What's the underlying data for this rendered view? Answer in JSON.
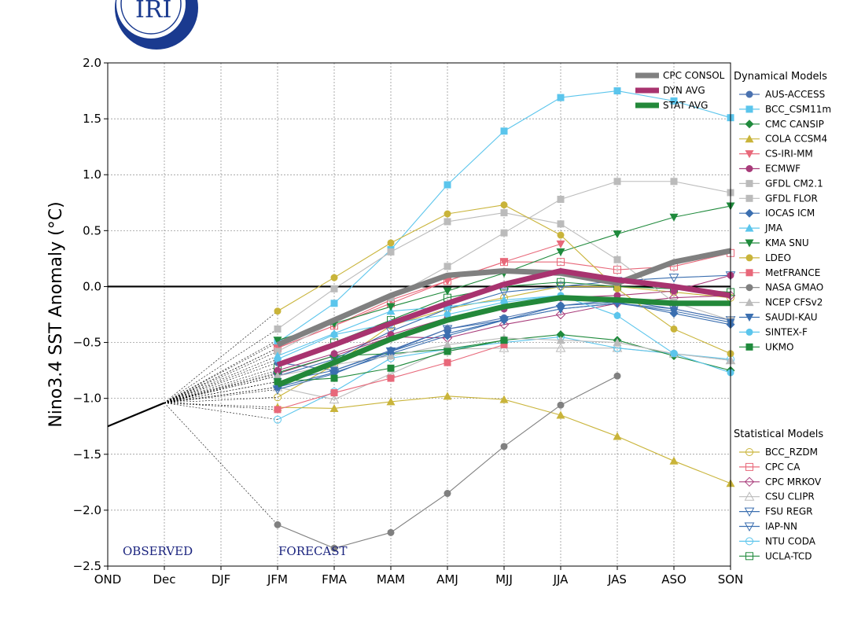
{
  "logo_text": "IRI",
  "chart_data": {
    "type": "line",
    "title": "",
    "xlabel": "",
    "ylabel": "Nino3.4 SST Anomaly (°C)",
    "ylim": [
      -2.5,
      2.0
    ],
    "y_ticks": [
      -2.5,
      -2.0,
      -1.5,
      -1.0,
      -0.5,
      0.0,
      0.5,
      1.0,
      1.5,
      2.0
    ],
    "y_tick_labels": [
      "−2.5",
      "−2.0",
      "−1.5",
      "−1.0",
      "−0.5",
      "0.0",
      "0.5",
      "1.0",
      "1.5",
      "2.0"
    ],
    "categories": [
      "OND",
      "Dec",
      "DJF",
      "JFM",
      "FMA",
      "MAM",
      "AMJ",
      "MJJ",
      "JJA",
      "JAS",
      "ASO",
      "SON"
    ],
    "grid": true,
    "zero_line": true,
    "annotations": {
      "observed": "OBSERVED",
      "forecast": "FORECAST"
    },
    "observed": {
      "x": [
        "OND",
        "Dec"
      ],
      "values": [
        -1.25,
        -1.04
      ]
    },
    "forecast_start": {
      "x": "Dec",
      "value": -1.04
    },
    "averages": [
      {
        "name": "CPC CONSOL",
        "color": "#808080",
        "values": [
          null,
          null,
          null,
          -0.52,
          -0.3,
          -0.08,
          0.1,
          0.14,
          0.12,
          0.03,
          0.22,
          0.32
        ]
      },
      {
        "name": "DYN AVG",
        "color": "#a8336f",
        "values": [
          null,
          null,
          null,
          -0.7,
          -0.52,
          -0.33,
          -0.15,
          0.02,
          0.14,
          0.06,
          0.0,
          -0.08
        ]
      },
      {
        "name": "STAT AVG",
        "color": "#23883a",
        "values": [
          null,
          null,
          null,
          -0.88,
          -0.68,
          -0.47,
          -0.3,
          -0.18,
          -0.1,
          -0.12,
          -0.15,
          -0.15
        ]
      }
    ],
    "dynamical_models_title": "Dynamical Models",
    "dynamical_models": [
      {
        "name": "AUS-ACCESS",
        "color": "#4a72b0",
        "marker": "circle",
        "values": [
          null,
          null,
          null,
          -0.68,
          -0.75,
          -0.57,
          -0.38,
          -0.28,
          -0.17,
          -0.12,
          -0.2,
          -0.3
        ]
      },
      {
        "name": "BCC_CSM11m",
        "color": "#5bc5ec",
        "marker": "square",
        "values": [
          null,
          null,
          null,
          -0.5,
          -0.15,
          0.33,
          0.91,
          1.39,
          1.69,
          1.75,
          1.66,
          1.51
        ]
      },
      {
        "name": "CMC CANSIP",
        "color": "#1f8a3c",
        "marker": "diamond",
        "values": [
          null,
          null,
          null,
          -0.77,
          -0.62,
          -0.6,
          -0.56,
          -0.48,
          -0.43,
          -0.48,
          -0.62,
          -0.75
        ]
      },
      {
        "name": "COLA CCSM4",
        "color": "#c9b43a",
        "marker": "triangle-up",
        "values": [
          null,
          null,
          null,
          -1.08,
          -1.09,
          -1.03,
          -0.98,
          -1.01,
          -1.15,
          -1.34,
          -1.56,
          -1.76
        ]
      },
      {
        "name": "CS-IRI-MM",
        "color": "#e8687a",
        "marker": "triangle-down",
        "values": [
          null,
          null,
          null,
          -0.55,
          -0.35,
          -0.12,
          0.05,
          0.22,
          0.38,
          null,
          null,
          null
        ]
      },
      {
        "name": "ECMWF",
        "color": "#a83b7a",
        "marker": "circle",
        "values": [
          null,
          null,
          null,
          -0.75,
          -0.6,
          -0.43,
          -0.28,
          -0.2,
          -0.1,
          -0.08,
          -0.04,
          0.1
        ]
      },
      {
        "name": "GFDL CM2.1",
        "color": "#bbbbbb",
        "marker": "square",
        "values": [
          null,
          null,
          null,
          -0.38,
          -0.02,
          0.31,
          0.58,
          0.66,
          0.56,
          0.24,
          -0.14,
          -0.3
        ]
      },
      {
        "name": "GFDL FLOR",
        "color": "#bbbbbb",
        "marker": "square",
        "values": [
          null,
          null,
          null,
          -0.58,
          -0.32,
          -0.1,
          0.18,
          0.48,
          0.78,
          0.94,
          0.94,
          0.84
        ]
      },
      {
        "name": "IOCAS ICM",
        "color": "#3b6fb0",
        "marker": "diamond",
        "values": [
          null,
          null,
          null,
          -0.9,
          -0.77,
          -0.6,
          -0.44,
          -0.3,
          -0.17,
          -0.14,
          -0.24,
          -0.34
        ]
      },
      {
        "name": "JMA",
        "color": "#5bc5ec",
        "marker": "triangle-up",
        "values": [
          null,
          null,
          null,
          -0.62,
          -0.42,
          -0.22,
          -0.18,
          -0.12,
          -0.08,
          null,
          null,
          null
        ]
      },
      {
        "name": "KMA SNU",
        "color": "#1f8a3c",
        "marker": "triangle-down",
        "values": [
          null,
          null,
          null,
          -0.48,
          -0.33,
          -0.18,
          -0.04,
          0.12,
          0.31,
          0.47,
          0.62,
          0.72
        ]
      },
      {
        "name": "LDEO",
        "color": "#c9b43a",
        "marker": "circle",
        "values": [
          null,
          null,
          null,
          -0.22,
          0.08,
          0.39,
          0.65,
          0.73,
          0.46,
          -0.02,
          -0.38,
          -0.6
        ]
      },
      {
        "name": "MetFRANCE",
        "color": "#e8687a",
        "marker": "square",
        "values": [
          null,
          null,
          null,
          -1.1,
          -0.95,
          -0.82,
          -0.68,
          -0.52,
          null,
          null,
          null,
          null
        ]
      },
      {
        "name": "NASA GMAO",
        "color": "#808080",
        "marker": "circle",
        "values": [
          null,
          null,
          null,
          -2.13,
          -2.34,
          -2.2,
          -1.85,
          -1.43,
          -1.06,
          -0.8,
          null,
          null
        ]
      },
      {
        "name": "NCEP CFSv2",
        "color": "#bbbbbb",
        "marker": "triangle-up",
        "values": [
          null,
          null,
          null,
          -0.8,
          -0.7,
          -0.62,
          -0.52,
          -0.46,
          -0.48,
          -0.5,
          -0.6,
          -0.66
        ]
      },
      {
        "name": "SAUDI-KAU",
        "color": "#3b6fb0",
        "marker": "triangle-down",
        "values": [
          null,
          null,
          null,
          -0.85,
          -0.75,
          -0.58,
          -0.42,
          -0.3,
          -0.2,
          -0.15,
          -0.22,
          -0.32
        ]
      },
      {
        "name": "SINTEX-F",
        "color": "#5bc5ec",
        "marker": "circle",
        "values": [
          null,
          null,
          null,
          -0.65,
          -0.43,
          -0.33,
          -0.25,
          -0.14,
          -0.08,
          -0.26,
          -0.6,
          -0.77
        ]
      },
      {
        "name": "UKMO",
        "color": "#1f8a3c",
        "marker": "square",
        "values": [
          null,
          null,
          null,
          -0.85,
          -0.82,
          -0.73,
          -0.58,
          -0.48,
          null,
          null,
          null,
          null
        ]
      }
    ],
    "statistical_models_title": "Statistical Models",
    "statistical_models": [
      {
        "name": "BCC_RZDM",
        "color": "#c9b43a",
        "marker": "circle-open",
        "values": [
          null,
          null,
          null,
          -0.99,
          -0.7,
          -0.35,
          -0.2,
          -0.1,
          0.0,
          0.0,
          -0.05,
          -0.1
        ]
      },
      {
        "name": "CPC CA",
        "color": "#e8687a",
        "marker": "square-open",
        "values": [
          null,
          null,
          null,
          -0.55,
          -0.35,
          -0.15,
          0.05,
          0.22,
          0.22,
          0.15,
          0.18,
          0.3
        ]
      },
      {
        "name": "CPC MRKOV",
        "color": "#a83b7a",
        "marker": "diamond-open",
        "values": [
          null,
          null,
          null,
          -0.78,
          -0.62,
          -0.45,
          -0.46,
          -0.34,
          -0.25,
          -0.15,
          -0.1,
          -0.08
        ]
      },
      {
        "name": "CSU CLIPR",
        "color": "#bbbbbb",
        "marker": "triangle-up-open",
        "values": [
          null,
          null,
          null,
          -0.9,
          -1.01,
          -0.78,
          -0.56,
          -0.55,
          -0.55,
          -0.55,
          -0.6,
          -0.66
        ]
      },
      {
        "name": "FSU REGR",
        "color": "#3b6fb0",
        "marker": "triangle-down-open",
        "values": [
          null,
          null,
          null,
          -0.8,
          -0.65,
          -0.4,
          -0.2,
          -0.05,
          0.0,
          0.05,
          0.08,
          0.1
        ]
      },
      {
        "name": "IAP-NN",
        "color": "#3b6fb0",
        "marker": "triangle-down-open",
        "values": [
          null,
          null,
          null,
          -0.92,
          -0.78,
          -0.58,
          -0.38,
          -0.3,
          -0.2,
          -0.15,
          -0.2,
          -0.3
        ]
      },
      {
        "name": "NTU CODA",
        "color": "#5bc5ec",
        "marker": "circle-open",
        "values": [
          null,
          null,
          null,
          -1.19,
          -0.94,
          -0.64,
          -0.56,
          -0.5,
          -0.45,
          -0.55,
          -0.6,
          -0.65
        ]
      },
      {
        "name": "UCLA-TCD",
        "color": "#1f8a3c",
        "marker": "square-open",
        "values": [
          null,
          null,
          null,
          -0.72,
          -0.5,
          -0.3,
          -0.1,
          0.0,
          0.04,
          0.0,
          -0.02,
          -0.05
        ]
      }
    ]
  }
}
